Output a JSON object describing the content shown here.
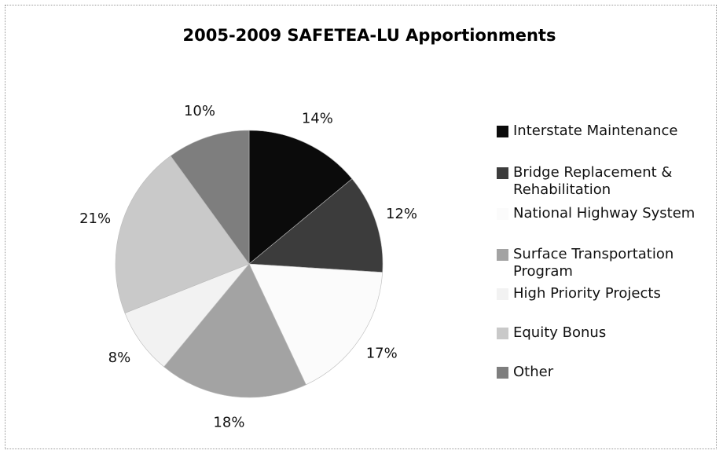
{
  "chart_data": {
    "type": "pie",
    "title": "2005-2009 SAFETEA-LU Apportionments",
    "categories": [
      "Interstate Maintenance",
      "Bridge Replacement & Rehabilitation",
      "National Highway System",
      "Surface Transportation Program",
      "High Priority Projects",
      "Equity Bonus",
      "Other"
    ],
    "values": [
      14,
      12,
      17,
      18,
      8,
      21,
      10
    ],
    "value_labels": [
      "14%",
      "12%",
      "17%",
      "18%",
      "8%",
      "21%",
      "10%"
    ],
    "colors": [
      "#0b0b0b",
      "#3c3c3c",
      "#fbfbfb",
      "#a3a3a3",
      "#f2f2f2",
      "#c9c9c9",
      "#7e7e7e"
    ],
    "legend": "right"
  }
}
